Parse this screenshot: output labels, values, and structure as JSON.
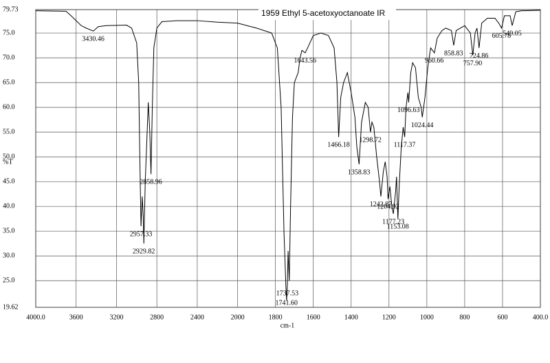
{
  "chart_data": {
    "type": "line",
    "title": "1959 Ethyl 5-acetoxyoctanoate IR",
    "x_label": "cm-1",
    "y_label": "%T",
    "xlim": [
      4000,
      400
    ],
    "ylim": [
      19.62,
      79.73
    ],
    "xticks": [
      {
        "value": 4000,
        "label": "4000.0"
      },
      3600,
      3200,
      2800,
      2400,
      2000,
      1800,
      1600,
      1400,
      1200,
      1000,
      800,
      600,
      {
        "value": 400,
        "label": "400.0"
      }
    ],
    "yticks": [
      19.62,
      {
        "value": 25,
        "label": "25.0"
      },
      {
        "value": 30,
        "label": "30.0"
      },
      {
        "value": 35,
        "label": "35.0"
      },
      {
        "value": 40,
        "label": "40.0"
      },
      {
        "value": 45,
        "label": "45.0"
      },
      {
        "value": 50,
        "label": "50.0"
      },
      {
        "value": 55,
        "label": "55.0"
      },
      {
        "value": 60,
        "label": "60.0"
      },
      {
        "value": 65,
        "label": "65.0"
      },
      {
        "value": 70,
        "label": "70.0"
      },
      {
        "value": 75,
        "label": "75.0"
      },
      79.73
    ],
    "grid": true,
    "series": [
      {
        "color": "#000000",
        "x": [
          4000,
          3700,
          3650,
          3550,
          3500,
          3430,
          3380,
          3300,
          3100,
          3050,
          3000,
          2980,
          2965,
          2957,
          2945,
          2935,
          2929,
          2915,
          2900,
          2885,
          2870,
          2858,
          2845,
          2830,
          2800,
          2750,
          2600,
          2400,
          2200,
          2000,
          1900,
          1820,
          1790,
          1770,
          1755,
          1745,
          1741,
          1737,
          1733,
          1727,
          1720,
          1710,
          1700,
          1680,
          1670,
          1660,
          1643,
          1630,
          1600,
          1560,
          1520,
          1490,
          1475,
          1466,
          1455,
          1440,
          1420,
          1400,
          1380,
          1370,
          1358,
          1345,
          1325,
          1310,
          1298,
          1290,
          1280,
          1265,
          1250,
          1243,
          1230,
          1220,
          1210,
          1205,
          1195,
          1185,
          1177,
          1165,
          1160,
          1153,
          1145,
          1135,
          1125,
          1117,
          1110,
          1100,
          1096,
          1085,
          1075,
          1060,
          1045,
          1030,
          1024,
          1010,
          995,
          980,
          960,
          945,
          920,
          900,
          870,
          858,
          845,
          800,
          770,
          757,
          745,
          735,
          724,
          710,
          680,
          640,
          620,
          605,
          590,
          560,
          549,
          530,
          500,
          400
        ],
        "values": [
          79.5,
          79.4,
          78.5,
          76.5,
          76.0,
          75.4,
          76.3,
          76.5,
          76.6,
          76.0,
          73,
          65,
          45,
          36,
          42,
          38,
          32.5,
          45,
          53,
          61,
          55,
          46.5,
          60,
          72,
          76,
          77.3,
          77.5,
          77.5,
          77.2,
          77.0,
          76.0,
          75.0,
          72,
          60,
          35,
          24,
          21,
          24,
          31,
          25,
          40,
          58,
          65,
          67,
          70,
          71.5,
          71,
          72,
          74.5,
          75,
          74.5,
          72,
          65,
          54,
          62,
          65,
          67,
          63,
          58,
          52,
          48.5,
          57,
          61,
          60,
          55,
          57,
          56,
          50,
          45,
          42,
          47,
          49,
          46,
          41.5,
          44,
          40,
          38.5,
          43,
          46,
          37.5,
          45,
          52,
          56,
          54,
          60,
          63,
          61,
          67,
          69,
          68,
          62,
          60,
          58,
          62,
          68,
          72,
          71,
          74,
          75.5,
          76,
          75.5,
          72.5,
          75.5,
          76.5,
          75,
          70.5,
          75,
          76,
          72,
          77,
          78,
          78,
          77,
          76,
          78.5,
          78.5,
          76.5,
          79.3,
          79.5,
          79.6
        ]
      }
    ],
    "peaks": [
      {
        "x": 3430.46,
        "y": 75.4
      },
      {
        "x": 2957.33,
        "y": 36
      },
      {
        "x": 2929.82,
        "y": 32.5
      },
      {
        "x": 2858.96,
        "y": 46.5
      },
      {
        "x": 1737.53,
        "y": 24
      },
      {
        "x": 1741.6,
        "y": 21,
        "label": "1741.60"
      },
      {
        "x": 1643.56,
        "y": 71
      },
      {
        "x": 1466.18,
        "y": 54
      },
      {
        "x": 1358.83,
        "y": 48.5
      },
      {
        "x": 1298.72,
        "y": 55
      },
      {
        "x": 1242.87,
        "y": 42
      },
      {
        "x": 1204.92,
        "y": 41.5
      },
      {
        "x": 1177.23,
        "y": 38.5
      },
      {
        "x": 1153.08,
        "y": 37.5
      },
      {
        "x": 1117.37,
        "y": 54
      },
      {
        "x": 1096.63,
        "y": 61
      },
      {
        "x": 1024.44,
        "y": 58
      },
      {
        "x": 960.66,
        "y": 71
      },
      {
        "x": 858.83,
        "y": 72.5
      },
      {
        "x": 757.9,
        "y": 70.5,
        "label": "757.90"
      },
      {
        "x": 724.86,
        "y": 72
      },
      {
        "x": 605.78,
        "y": 76
      },
      {
        "x": 549.05,
        "y": 76.5
      }
    ]
  }
}
